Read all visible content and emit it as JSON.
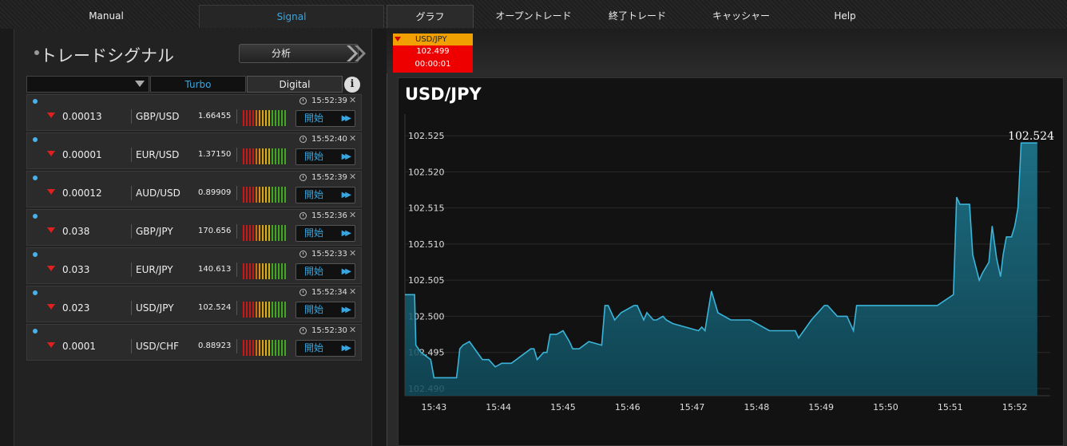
{
  "nav": {
    "manual": "Manual",
    "signal": "Signal",
    "graph": "グラフ",
    "open_trades": "オープントレード",
    "closed_trades": "終了トレード",
    "cashier": "キャッシャー",
    "help": "Help"
  },
  "signal_panel": {
    "title": "トレードシグナル",
    "analyze_label": "分析",
    "turbo_label": "Turbo",
    "digital_label": "Digital",
    "info_label": "i",
    "start_label": "開始",
    "rows": [
      {
        "change": "0.00013",
        "pair": "GBP/USD",
        "price": "1.66455",
        "time": "15:52:39"
      },
      {
        "change": "0.00001",
        "pair": "EUR/USD",
        "price": "1.37150",
        "time": "15:52:40"
      },
      {
        "change": "0.00012",
        "pair": "AUD/USD",
        "price": "0.89909",
        "time": "15:52:39"
      },
      {
        "change": "0.038",
        "pair": "GBP/JPY",
        "price": "170.656",
        "time": "15:52:36"
      },
      {
        "change": "0.033",
        "pair": "EUR/JPY",
        "price": "140.613",
        "time": "15:52:33"
      },
      {
        "change": "0.023",
        "pair": "USD/JPY",
        "price": "102.524",
        "time": "15:52:34"
      },
      {
        "change": "0.0001",
        "pair": "USD/CHF",
        "price": "0.88923",
        "time": "15:52:30"
      }
    ]
  },
  "mini_tab": {
    "pair": "USD/JPY",
    "price": "102.499",
    "timer": "00:00:01"
  },
  "chart_data": {
    "type": "area",
    "title": "USD/JPY",
    "current_value_label": "102.524",
    "ylim": [
      102.489,
      102.528
    ],
    "yticks": [
      "102.490",
      "102.495",
      "102.500",
      "102.505",
      "102.510",
      "102.515",
      "102.520",
      "102.525"
    ],
    "xticks": [
      "15:43",
      "15:44",
      "15:45",
      "15:46",
      "15:47",
      "15:48",
      "15:49",
      "15:50",
      "15:51",
      "15:52"
    ],
    "xlim_minutes": [
      42.55,
      52.55
    ],
    "series": [
      {
        "color": "#3ab4d8",
        "x": [
          42.55,
          42.7,
          42.72,
          42.8,
          42.95,
          43.0,
          43.2,
          43.35,
          43.37,
          43.4,
          43.45,
          43.55,
          43.75,
          43.85,
          43.95,
          44.05,
          44.2,
          44.5,
          44.55,
          44.6,
          44.7,
          44.75,
          44.8,
          44.9,
          45.0,
          45.1,
          45.15,
          45.25,
          45.4,
          45.6,
          45.65,
          45.7,
          45.8,
          45.9,
          46.1,
          46.15,
          46.25,
          46.3,
          46.4,
          46.45,
          46.55,
          46.6,
          46.7,
          47.1,
          47.15,
          47.2,
          47.3,
          47.4,
          47.6,
          47.9,
          48.2,
          48.5,
          48.6,
          48.65,
          48.85,
          49.05,
          49.1,
          49.25,
          49.4,
          49.5,
          49.55,
          49.95,
          50.3,
          50.8,
          51.05,
          51.1,
          51.15,
          51.3,
          51.35,
          51.45,
          51.5,
          51.6,
          51.65,
          51.72,
          51.78,
          51.82,
          51.87,
          51.95,
          52.0,
          52.05,
          52.1,
          52.2,
          52.3,
          52.35
        ],
        "y": [
          102.503,
          102.503,
          102.496,
          102.495,
          102.494,
          102.4915,
          102.4915,
          102.4915,
          102.493,
          102.4955,
          102.496,
          102.4965,
          102.494,
          102.494,
          102.493,
          102.4935,
          102.4935,
          102.4955,
          102.4955,
          102.494,
          102.495,
          102.495,
          102.4975,
          102.4975,
          102.498,
          102.4965,
          102.4955,
          102.4955,
          102.4965,
          102.496,
          102.5015,
          102.5015,
          102.4995,
          102.5005,
          102.5015,
          102.5015,
          102.4995,
          102.5005,
          102.4995,
          102.4995,
          102.5,
          102.4995,
          102.499,
          102.498,
          102.4985,
          102.498,
          102.5035,
          102.5005,
          102.4995,
          102.4995,
          102.498,
          102.498,
          102.498,
          102.497,
          102.4995,
          102.5015,
          102.5015,
          102.5,
          102.5,
          102.498,
          102.5015,
          102.5015,
          102.5015,
          102.5015,
          102.503,
          102.5165,
          102.5155,
          102.5155,
          102.5085,
          102.505,
          102.506,
          102.5075,
          102.5125,
          102.508,
          102.5055,
          102.5085,
          102.511,
          102.511,
          102.5125,
          102.515,
          102.524,
          102.524,
          102.524,
          102.524
        ]
      }
    ]
  }
}
